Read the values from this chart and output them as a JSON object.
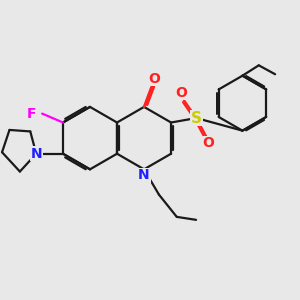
{
  "bg_color": "#e8e8e8",
  "bond_color": "#1a1a1a",
  "N_color": "#2020ff",
  "O_color": "#ff2020",
  "F_color": "#ff00ff",
  "S_color": "#cccc00",
  "lw": 1.6,
  "figsize": [
    3.0,
    3.0
  ],
  "dpi": 100,
  "xlim": [
    0,
    10
  ],
  "ylim": [
    0,
    10
  ]
}
